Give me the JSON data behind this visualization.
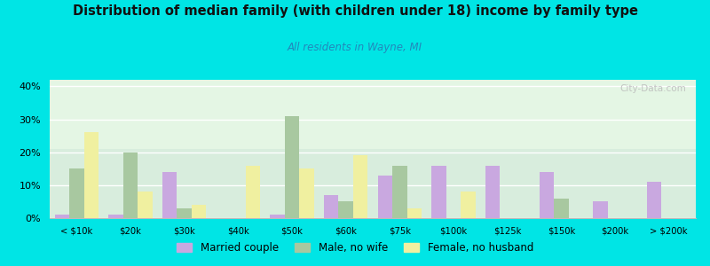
{
  "title": "Distribution of median family (with children under 18) income by family type",
  "subtitle": "All residents in Wayne, MI",
  "categories": [
    "< $10k",
    "$20k",
    "$30k",
    "$40k",
    "$50k",
    "$60k",
    "$75k",
    "$100k",
    "$125k",
    "$150k",
    "$200k",
    "> $200k"
  ],
  "married_couple": [
    1,
    1,
    14,
    0,
    1,
    7,
    13,
    16,
    16,
    14,
    5,
    11
  ],
  "male_no_wife": [
    15,
    20,
    3,
    0,
    31,
    5,
    16,
    0,
    0,
    6,
    0,
    0
  ],
  "female_no_husband": [
    26,
    8,
    4,
    16,
    15,
    19,
    3,
    8,
    0,
    0,
    0,
    0
  ],
  "married_color": "#c9a8e0",
  "male_color": "#a8c8a0",
  "female_color": "#f0f0a0",
  "bg_color": "#00e5e5",
  "plot_bg_top": "#e8f8f0",
  "plot_bg_bottom": "#f8fff8",
  "title_color": "#111111",
  "subtitle_color": "#2288bb",
  "watermark": "City-Data.com",
  "ylim": [
    0,
    42
  ],
  "yticks": [
    0,
    10,
    20,
    30,
    40
  ],
  "bar_width": 0.27
}
